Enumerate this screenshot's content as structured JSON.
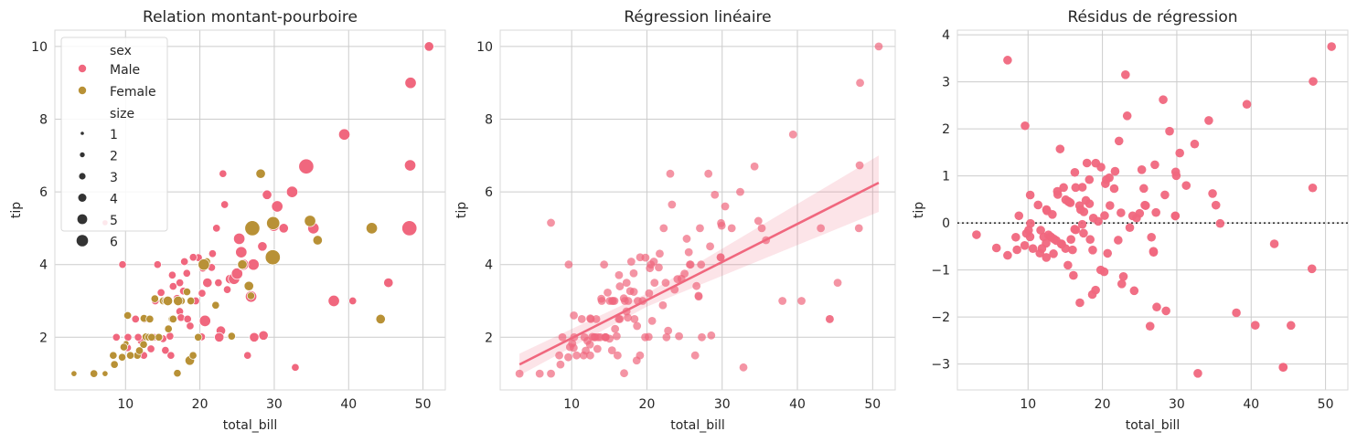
{
  "colors": {
    "male": "#f0677e",
    "female": "#b89136",
    "grid": "#cccccc",
    "frame": "#d9d9d9",
    "refline": "#333333"
  },
  "chart_data": [
    {
      "type": "scatter",
      "title": "Relation montant-pourboire",
      "xlabel": "total_bill",
      "ylabel": "tip",
      "xlim": [
        0.5,
        53
      ],
      "ylim": [
        0.55,
        10.45
      ],
      "xticks": [
        "10",
        "20",
        "30",
        "40",
        "50"
      ],
      "yticks": [
        "2",
        "4",
        "6",
        "8",
        "10"
      ],
      "grid": true,
      "legend": {
        "placement": "top-left",
        "hue_title": "sex",
        "hue_entries": [
          "Male",
          "Female"
        ],
        "size_title": "size",
        "size_entries": [
          "1",
          "2",
          "3",
          "4",
          "5",
          "6"
        ]
      },
      "series": [
        {
          "name": "Male",
          "points": [
            [
              7.25,
              5.15,
              1
            ],
            [
              8.77,
              2.0,
              2
            ],
            [
              9.6,
              4.0,
              2
            ],
            [
              10.27,
              1.71,
              2
            ],
            [
              10.33,
              2.0,
              2
            ],
            [
              11.35,
              2.5,
              2
            ],
            [
              12.46,
              1.5,
              2
            ],
            [
              12.54,
              2.5,
              2
            ],
            [
              13.42,
              1.68,
              2
            ],
            [
              13.81,
              2.0,
              2
            ],
            [
              14.31,
              4.0,
              2
            ],
            [
              14.48,
              2.0,
              2
            ],
            [
              14.78,
              3.23,
              2
            ],
            [
              15.04,
              1.96,
              2
            ],
            [
              15.36,
              1.64,
              2
            ],
            [
              15.98,
              2.03,
              2
            ],
            [
              16.29,
              3.71,
              2
            ],
            [
              16.93,
              3.07,
              2
            ],
            [
              17.29,
              2.71,
              2
            ],
            [
              17.46,
              2.54,
              2
            ],
            [
              17.78,
              3.27,
              2
            ],
            [
              17.92,
              4.08,
              2
            ],
            [
              18.24,
              3.76,
              2
            ],
            [
              18.35,
              2.5,
              2
            ],
            [
              18.69,
              2.31,
              2
            ],
            [
              19.44,
              3.0,
              2
            ],
            [
              19.81,
              4.19,
              2
            ],
            [
              20.23,
              2.01,
              2
            ],
            [
              20.29,
              3.21,
              2
            ],
            [
              20.69,
              2.45,
              4
            ],
            [
              21.01,
              3.5,
              3
            ],
            [
              21.58,
              3.92,
              2
            ],
            [
              22.23,
              5.0,
              2
            ],
            [
              22.49,
              3.5,
              2
            ],
            [
              22.82,
              2.18,
              3
            ],
            [
              23.33,
              5.65,
              2
            ],
            [
              23.68,
              3.31,
              2
            ],
            [
              24.06,
              3.6,
              3
            ],
            [
              24.59,
              3.61,
              4
            ],
            [
              25.0,
              3.75,
              4
            ],
            [
              25.29,
              4.71,
              4
            ],
            [
              25.56,
              4.34,
              4
            ],
            [
              26.41,
              1.5,
              2
            ],
            [
              26.88,
              3.12,
              4
            ],
            [
              27.2,
              4.0,
              4
            ],
            [
              28.55,
              2.05,
              3
            ],
            [
              29.03,
              5.92,
              3
            ],
            [
              29.93,
              5.07,
              4
            ],
            [
              30.4,
              5.6,
              4
            ],
            [
              31.27,
              5.0,
              3
            ],
            [
              32.4,
              6.0,
              4
            ],
            [
              32.83,
              1.17,
              2
            ],
            [
              34.3,
              6.7,
              6
            ],
            [
              35.26,
              5.0,
              4
            ],
            [
              38.01,
              3.0,
              4
            ],
            [
              39.42,
              7.58,
              4
            ],
            [
              40.55,
              3.0,
              2
            ],
            [
              44.3,
              2.5,
              3
            ],
            [
              45.35,
              3.5,
              3
            ],
            [
              48.17,
              5.0,
              6
            ],
            [
              48.27,
              6.73,
              4
            ],
            [
              48.33,
              9.0,
              4
            ],
            [
              50.81,
              10.0,
              3
            ],
            [
              23.1,
              6.5,
              2
            ],
            [
              20.4,
              3.9,
              2
            ],
            [
              19.1,
              4.2,
              2
            ],
            [
              12.1,
              1.9,
              2
            ],
            [
              16.1,
              1.5,
              2
            ],
            [
              13.0,
              2.0,
              2
            ],
            [
              21.7,
              4.3,
              2
            ],
            [
              27.3,
              2.0,
              3
            ],
            [
              28.4,
              4.5,
              3
            ],
            [
              29.8,
              4.2,
              2
            ],
            [
              11.7,
              2.0,
              2
            ],
            [
              15.5,
              3.0,
              2
            ],
            [
              17.3,
              3.5,
              2
            ],
            [
              16.4,
              3.4,
              2
            ],
            [
              14.0,
              3.0,
              2
            ],
            [
              22.6,
              2.0,
              3
            ],
            [
              25.8,
              4.0,
              4
            ]
          ]
        },
        {
          "name": "Female",
          "points": [
            [
              3.07,
              1.0,
              1
            ],
            [
              5.75,
              1.0,
              2
            ],
            [
              7.25,
              1.0,
              1
            ],
            [
              8.35,
              1.5,
              2
            ],
            [
              8.51,
              1.25,
              2
            ],
            [
              9.55,
              1.45,
              2
            ],
            [
              10.07,
              1.83,
              1
            ],
            [
              10.29,
              2.6,
              2
            ],
            [
              11.59,
              1.5,
              2
            ],
            [
              12.48,
              2.52,
              2
            ],
            [
              12.74,
              2.01,
              2
            ],
            [
              13.13,
              2.0,
              2
            ],
            [
              13.27,
              2.5,
              2
            ],
            [
              13.94,
              3.06,
              2
            ],
            [
              14.52,
              2.0,
              2
            ],
            [
              15.06,
              3.0,
              2
            ],
            [
              15.38,
              3.0,
              2
            ],
            [
              15.77,
              2.23,
              2
            ],
            [
              16.27,
              2.5,
              2
            ],
            [
              16.97,
              1.01,
              2
            ],
            [
              17.51,
              3.0,
              2
            ],
            [
              18.26,
              3.25,
              2
            ],
            [
              18.78,
              3.0,
              2
            ],
            [
              19.77,
              2.0,
              2
            ],
            [
              20.92,
              4.08,
              2
            ],
            [
              22.12,
              2.88,
              2
            ],
            [
              25.71,
              4.0,
              3
            ],
            [
              26.86,
              3.14,
              2
            ],
            [
              28.17,
              6.5,
              3
            ],
            [
              29.85,
              5.14,
              5
            ],
            [
              29.8,
              4.2,
              6
            ],
            [
              34.81,
              5.2,
              4
            ],
            [
              35.83,
              4.67,
              3
            ],
            [
              43.11,
              5.0,
              4
            ],
            [
              44.3,
              2.5,
              3
            ],
            [
              18.64,
              1.36,
              3
            ],
            [
              24.27,
              2.03,
              2
            ],
            [
              16.4,
              2.5,
              2
            ],
            [
              19.08,
              1.5,
              2
            ],
            [
              14.48,
              2.0,
              2
            ],
            [
              10.65,
              1.5,
              2
            ],
            [
              12.43,
              1.8,
              2
            ],
            [
              20.53,
              4.0,
              4
            ],
            [
              27.05,
              5.0,
              6
            ],
            [
              9.78,
              1.73,
              2
            ],
            [
              11.87,
              1.63,
              2
            ],
            [
              13.51,
              2.0,
              2
            ],
            [
              17.07,
              3.0,
              3
            ],
            [
              26.59,
              3.41,
              3
            ],
            [
              15.69,
              3.0,
              3
            ]
          ]
        }
      ]
    },
    {
      "type": "scatter",
      "title": "Régression linéaire",
      "xlabel": "total_bill",
      "ylabel": "tip",
      "xlim": [
        0.5,
        53
      ],
      "ylim": [
        0.55,
        10.45
      ],
      "xticks": [
        "10",
        "20",
        "30",
        "40",
        "50"
      ],
      "yticks": [
        "2",
        "4",
        "6",
        "8",
        "10"
      ],
      "grid": true,
      "regression": {
        "x": [
          3.07,
          50.81
        ],
        "y": [
          1.25,
          6.25
        ],
        "band_low_at_end": 5.45,
        "band_high_at_end": 7.0,
        "band_low_at_start": 0.95,
        "band_high_at_start": 1.55
      }
    },
    {
      "type": "scatter",
      "title": "Résidus de régression",
      "xlabel": "total_bill",
      "ylabel": "tip",
      "xlim": [
        0.5,
        53
      ],
      "ylim": [
        -3.55,
        4.1
      ],
      "xticks": [
        "10",
        "20",
        "30",
        "40",
        "50"
      ],
      "yticks": [
        "−3",
        "−2",
        "−1",
        "0",
        "1",
        "2",
        "3",
        "4"
      ],
      "yticks_values": [
        -3,
        -2,
        -1,
        0,
        1,
        2,
        3,
        4
      ],
      "grid": true,
      "reference_line": 0
    }
  ]
}
